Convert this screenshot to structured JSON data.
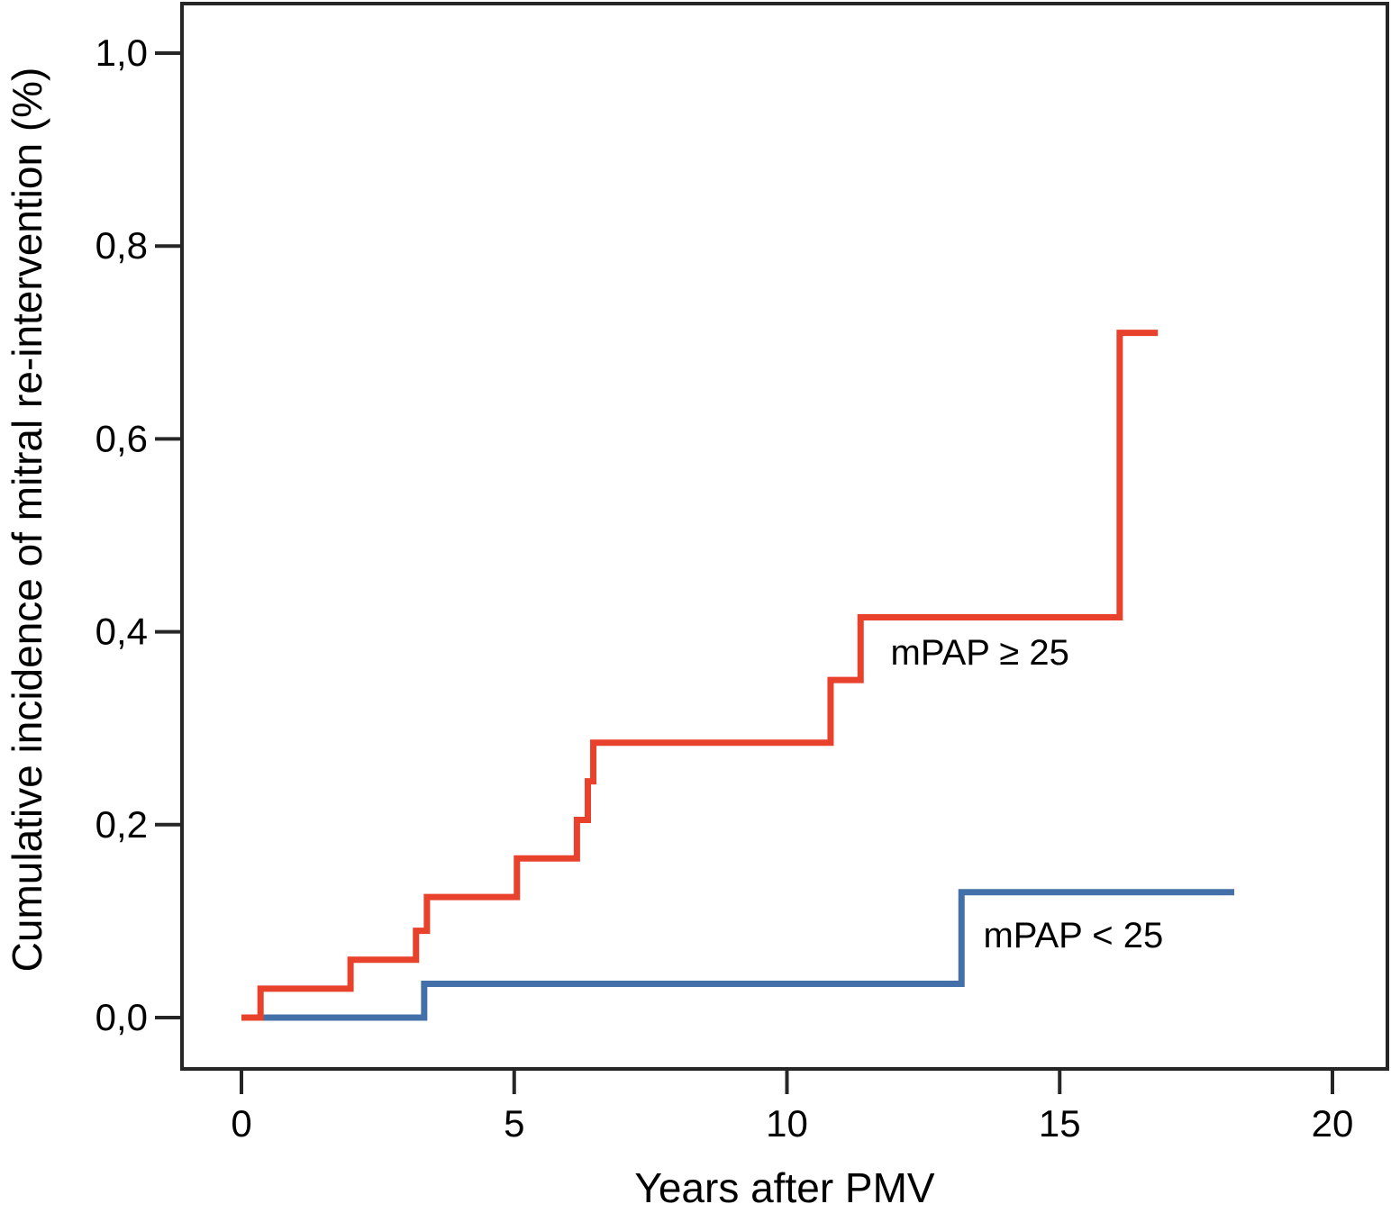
{
  "chart_data": {
    "type": "line",
    "subtype": "kaplan-meier-step",
    "title": "",
    "xlabel": "Years after PMV",
    "ylabel": "Cumulative incidence of mitral re-intervention (%)",
    "xlim": [
      -1.1,
      21.0
    ],
    "ylim": [
      -0.053,
      1.051
    ],
    "grid": false,
    "frame": true,
    "decimal_separator": ",",
    "x_ticks": {
      "values": [
        0,
        5,
        10,
        15,
        20
      ],
      "labels": [
        "0",
        "5",
        "10",
        "15",
        "20"
      ]
    },
    "y_ticks": {
      "values": [
        0.0,
        0.2,
        0.4,
        0.6,
        0.8,
        1.0
      ],
      "labels": [
        "0,0",
        "0,2",
        "0,4",
        "0,6",
        "0,8",
        "1,0"
      ]
    },
    "series": [
      {
        "name": "mPAP ≥ 25",
        "color": "#e8412c",
        "start": [
          0,
          0
        ],
        "end_x": 16.8,
        "steps": [
          [
            0.35,
            0.03
          ],
          [
            2.0,
            0.06
          ],
          [
            3.2,
            0.09
          ],
          [
            3.4,
            0.125
          ],
          [
            5.05,
            0.165
          ],
          [
            6.15,
            0.205
          ],
          [
            6.35,
            0.245
          ],
          [
            6.45,
            0.285
          ],
          [
            10.8,
            0.35
          ],
          [
            11.35,
            0.415
          ],
          [
            16.1,
            0.71
          ]
        ]
      },
      {
        "name": "mPAP < 25",
        "color": "#4470a9",
        "start": [
          0,
          0
        ],
        "end_x": 18.2,
        "steps": [
          [
            3.35,
            0.035
          ],
          [
            13.2,
            0.13
          ]
        ]
      }
    ],
    "annotations": [
      {
        "text": "mPAP ≥ 25",
        "x": 11.9,
        "y": 0.366
      },
      {
        "text": "mPAP < 25",
        "x": 13.6,
        "y": 0.073
      }
    ],
    "legend_position": "inline-labels",
    "frame_color": "#262626",
    "text_color": "#000000"
  }
}
